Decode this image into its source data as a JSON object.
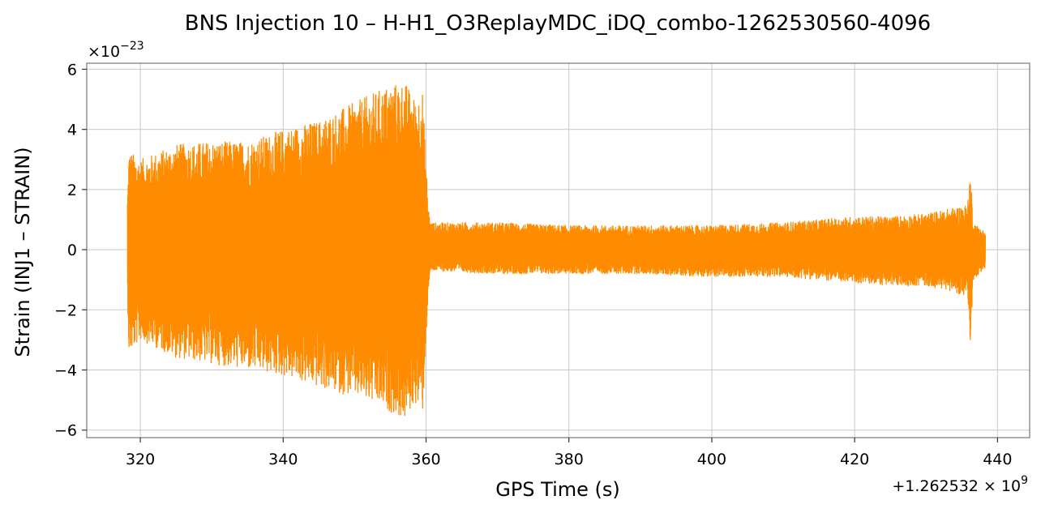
{
  "chart_data": {
    "type": "line",
    "title": "BNS Injection 10 – H-H1_O3ReplayMDC_iDQ_combo-1262530560-4096",
    "xlabel": "GPS Time (s)",
    "ylabel": "Strain (INJ1 – STRAIN)",
    "x_offset_label": "+1.262532 × 10",
    "x_offset_exp": "9",
    "y_scale_label": "×10",
    "y_scale_exp": "−23",
    "xlim": [
      312.5,
      444.5
    ],
    "ylim": [
      -6.25,
      6.2
    ],
    "x_ticks": [
      320,
      340,
      360,
      380,
      400,
      420,
      440
    ],
    "x_tick_labels": [
      "320",
      "340",
      "360",
      "380",
      "400",
      "420",
      "440"
    ],
    "y_ticks": [
      -6,
      -4,
      -2,
      0,
      2,
      4,
      6
    ],
    "y_tick_labels": [
      "−6",
      "−4",
      "−2",
      "0",
      "2",
      "4",
      "6"
    ],
    "grid": true,
    "series": [
      {
        "color": "#ff8c00",
        "x_range": [
          318.2,
          438.3
        ],
        "envelope": {
          "x": [
            318.2,
            318.4,
            320,
            325,
            330,
            335,
            340,
            345,
            350,
            355,
            357,
            358.5,
            359.5,
            360.3,
            360.6,
            370,
            380,
            390,
            400,
            410,
            420,
            425,
            430,
            434,
            435.8,
            436.2,
            436.6,
            438.3
          ],
          "upper": [
            1.8,
            3.3,
            3.0,
            3.5,
            3.6,
            3.6,
            4.0,
            4.3,
            4.9,
            5.5,
            5.6,
            5.0,
            5.3,
            1.5,
            0.9,
            0.9,
            0.8,
            0.8,
            0.8,
            0.9,
            1.1,
            1.1,
            1.2,
            1.4,
            1.5,
            2.7,
            0.9,
            0.6
          ],
          "lower": [
            -1.4,
            -3.5,
            -3.0,
            -3.6,
            -3.8,
            -4.0,
            -4.2,
            -4.6,
            -4.9,
            -5.4,
            -5.7,
            -5.1,
            -5.5,
            -1.5,
            -0.7,
            -0.8,
            -0.8,
            -0.8,
            -0.9,
            -0.9,
            -1.1,
            -1.2,
            -1.2,
            -1.4,
            -1.6,
            -3.3,
            -1.0,
            -0.6
          ]
        }
      }
    ]
  }
}
